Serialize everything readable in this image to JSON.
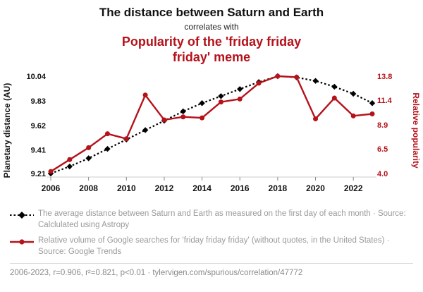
{
  "header": {
    "title": "The distance between Saturn and Earth",
    "connector": "correlates with",
    "subtitle": "Popularity of the 'friday friday friday' meme"
  },
  "colors": {
    "accent_red": "#b5121b",
    "series_black": "#000000",
    "legend_gray": "#9a9a9a"
  },
  "chart_data": {
    "type": "line",
    "x": [
      2006,
      2007,
      2008,
      2009,
      2010,
      2011,
      2012,
      2013,
      2014,
      2015,
      2016,
      2017,
      2018,
      2019,
      2020,
      2021,
      2022,
      2023
    ],
    "x_ticks": [
      2006,
      2008,
      2010,
      2012,
      2014,
      2016,
      2018,
      2020,
      2022
    ],
    "series": [
      {
        "name": "Average distance between Saturn and Earth",
        "axis": "left",
        "color": "#000000",
        "style": "dotted",
        "marker": "diamond",
        "values": [
          9.21,
          9.27,
          9.34,
          9.42,
          9.5,
          9.58,
          9.66,
          9.74,
          9.81,
          9.87,
          9.93,
          9.99,
          10.04,
          10.03,
          10.0,
          9.95,
          9.89,
          9.81
        ]
      },
      {
        "name": "Relative volume of Google searches for 'friday friday friday'",
        "axis": "right",
        "color": "#b5121b",
        "style": "solid",
        "marker": "circle",
        "values": [
          4.2,
          5.4,
          6.6,
          8.0,
          7.5,
          11.9,
          9.4,
          9.7,
          9.6,
          11.2,
          11.5,
          13.1,
          13.8,
          13.7,
          9.5,
          11.6,
          9.8,
          10.0
        ]
      }
    ],
    "left_axis": {
      "label": "Planetary distance (AU)",
      "ticks": [
        9.21,
        9.41,
        9.62,
        9.83,
        10.04
      ],
      "range": [
        9.21,
        10.04
      ]
    },
    "right_axis": {
      "label": "Relative popularity",
      "ticks": [
        4.0,
        6.5,
        8.9,
        11.4,
        13.8
      ],
      "range": [
        4.0,
        13.8
      ]
    },
    "grid": false,
    "legend_position": "below"
  },
  "legend": [
    {
      "text": "The average distance between Saturn and Earth as measured on the first day of each month · Source: Calclulated using Astropy"
    },
    {
      "text": "Relative volume of Google searches for 'friday friday friday' (without quotes, in the United States) · Source: Google Trends"
    }
  ],
  "footer": "2006-2023, r=0.906, r²=0.821, p<0.01 · tylervigen.com/spurious/correlation/47772"
}
